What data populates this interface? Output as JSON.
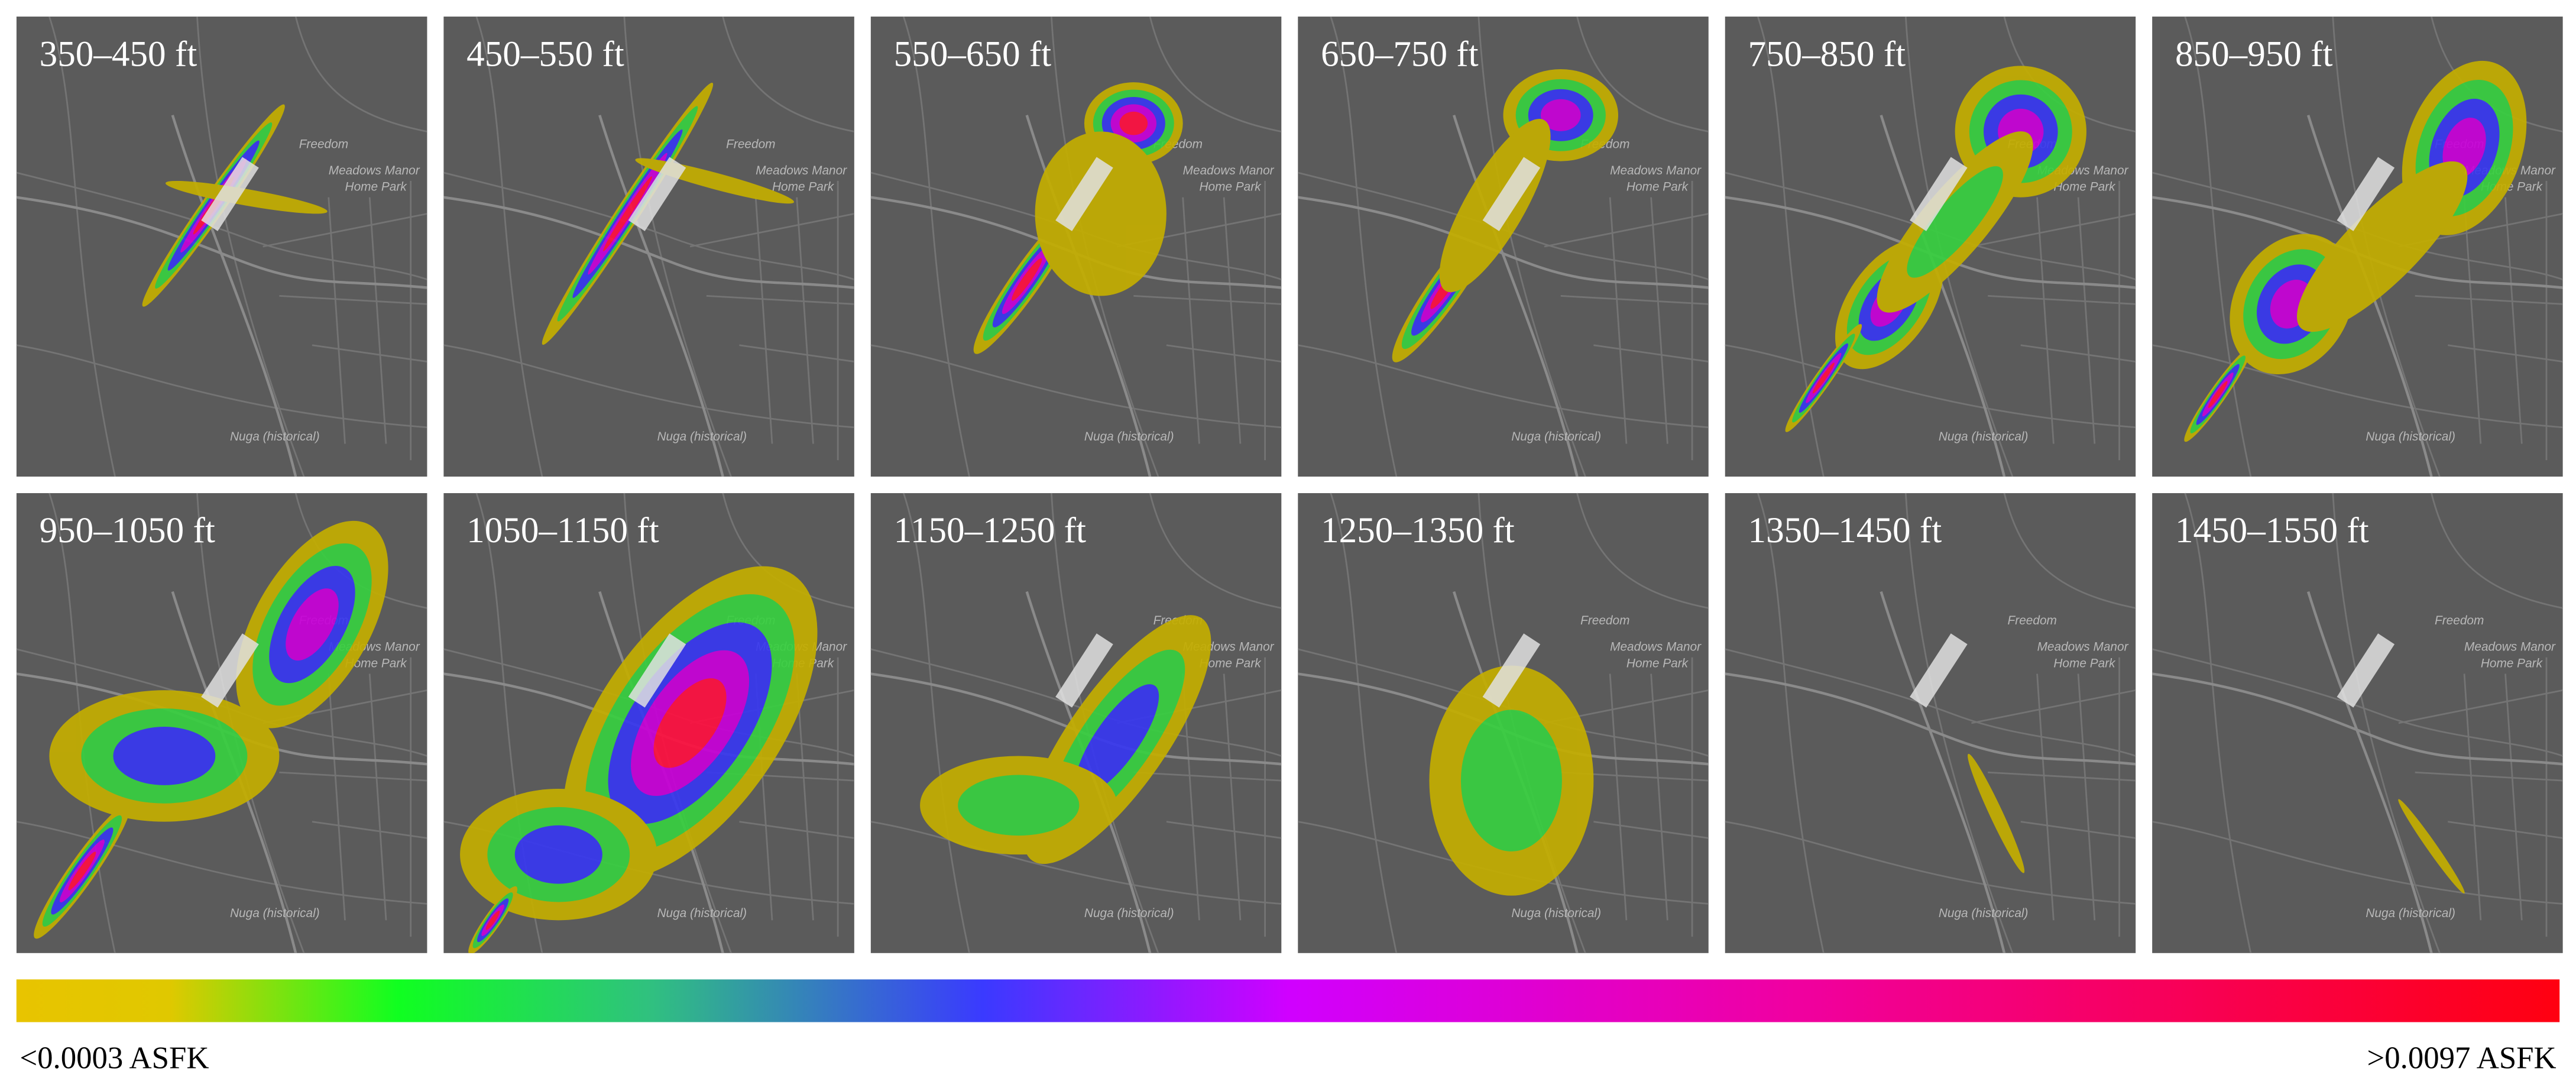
{
  "panels": [
    {
      "title": "350–450 ft"
    },
    {
      "title": "450–550 ft"
    },
    {
      "title": "550–650 ft"
    },
    {
      "title": "650–750 ft"
    },
    {
      "title": "750–850 ft"
    },
    {
      "title": "850–950 ft"
    },
    {
      "title": "950–1050 ft"
    },
    {
      "title": "1050–1150 ft"
    },
    {
      "title": "1150–1250 ft"
    },
    {
      "title": "1250–1350 ft"
    },
    {
      "title": "1350–1450 ft"
    },
    {
      "title": "1450–1550 ft"
    }
  ],
  "map_labels": [
    "Freedom",
    "Meadows Manor",
    "Home Park",
    "Nuga (historical)"
  ],
  "colorbar": {
    "min_label": "<0.0003 ASFK",
    "max_label": ">0.0097 ASFK"
  }
}
